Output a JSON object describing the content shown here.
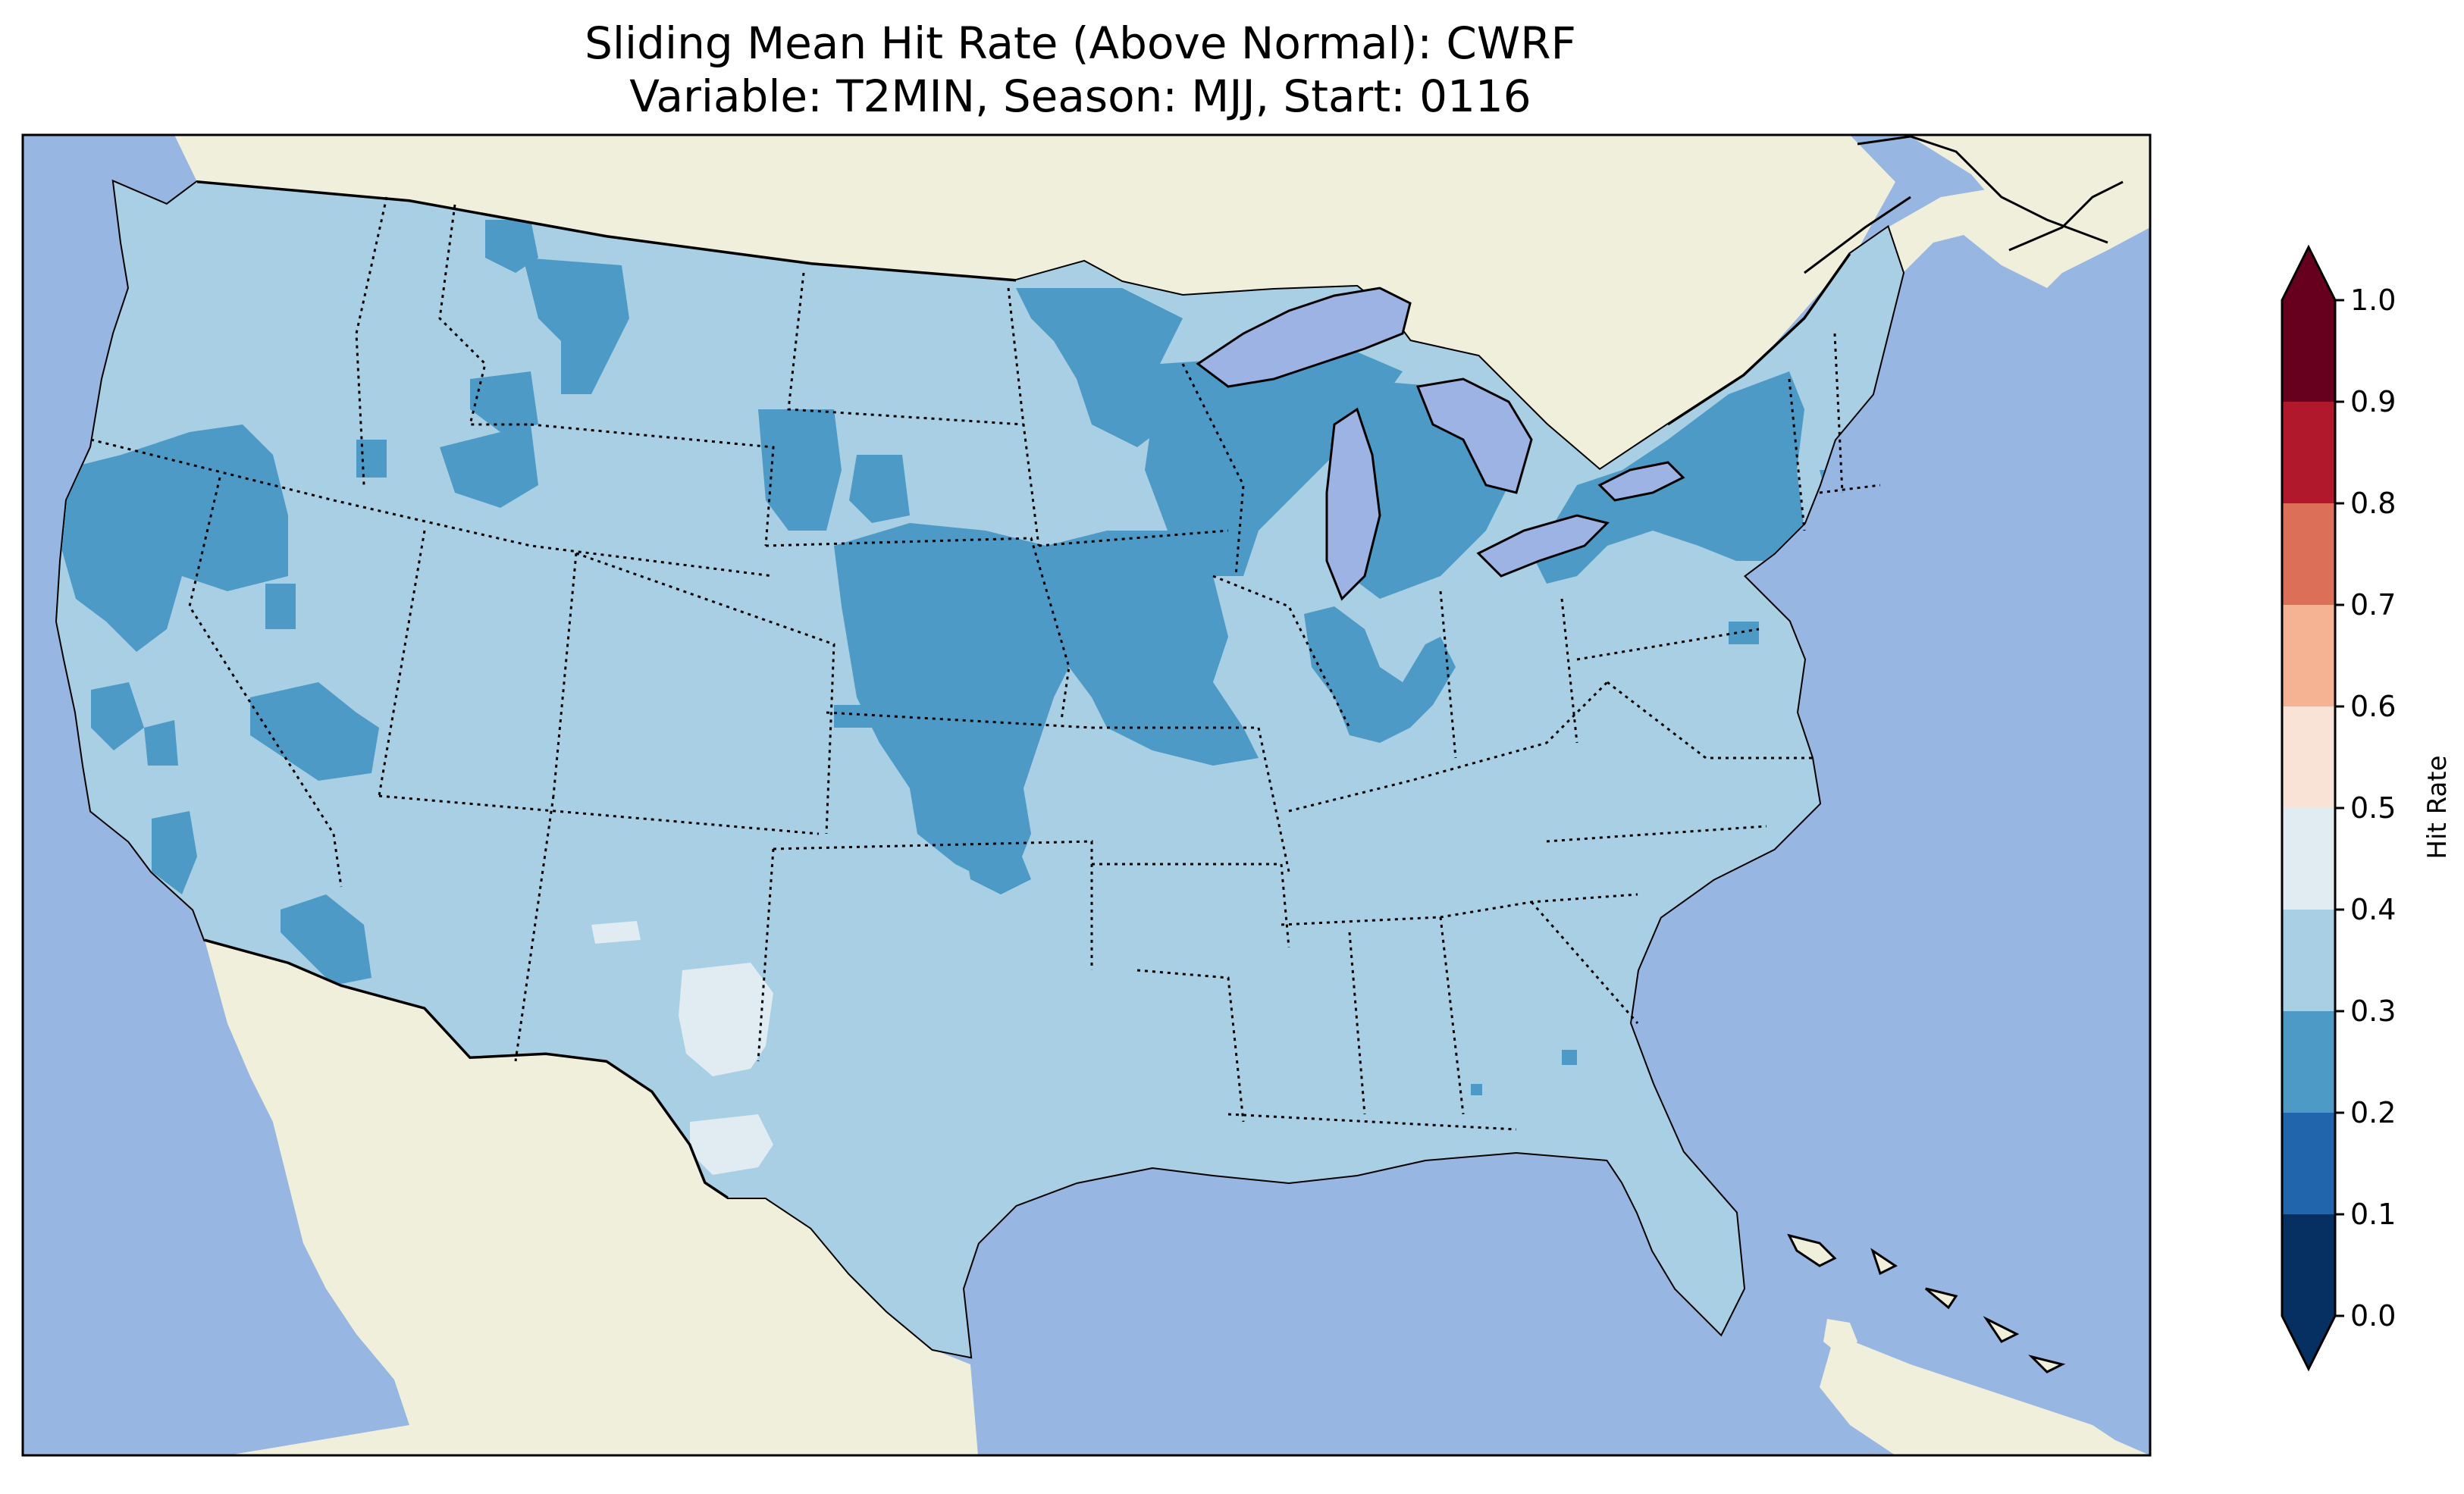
{
  "title": {
    "line1": "Sliding Mean Hit Rate (Above Normal): CWRF",
    "line2": "Variable: T2MIN, Season: MJJ, Start: 0116"
  },
  "map": {
    "region": "Contiguous United States",
    "ocean_color": "#97b6e1",
    "land_color": "#efefdc",
    "lake_color": "#9db3e3",
    "coastline_color": "#000000",
    "border_style": "dotted",
    "dominant_value_range": [
      0.3,
      0.4
    ],
    "secondary_value_range": [
      0.2,
      0.3
    ],
    "minor_value_range": [
      0.4,
      0.5
    ]
  },
  "colorbar": {
    "label": "Hit Rate",
    "ticks": [
      "0.0",
      "0.1",
      "0.2",
      "0.3",
      "0.4",
      "0.5",
      "0.6",
      "0.7",
      "0.8",
      "0.9",
      "1.0"
    ],
    "extend": "both",
    "under_color": "#053061",
    "over_color": "#67001f",
    "bins": [
      {
        "range": [
          0.0,
          0.1
        ],
        "color": "#053061"
      },
      {
        "range": [
          0.1,
          0.2
        ],
        "color": "#2166ac"
      },
      {
        "range": [
          0.2,
          0.3
        ],
        "color": "#4e9ac7"
      },
      {
        "range": [
          0.3,
          0.4
        ],
        "color": "#a8cfe3"
      },
      {
        "range": [
          0.4,
          0.5
        ],
        "color": "#e0ebf2"
      },
      {
        "range": [
          0.5,
          0.6
        ],
        "color": "#f9e3d6"
      },
      {
        "range": [
          0.6,
          0.7
        ],
        "color": "#f5b394"
      },
      {
        "range": [
          0.7,
          0.8
        ],
        "color": "#dc6f58"
      },
      {
        "range": [
          0.8,
          0.9
        ],
        "color": "#b2182b"
      },
      {
        "range": [
          0.9,
          1.0
        ],
        "color": "#67001f"
      }
    ]
  }
}
